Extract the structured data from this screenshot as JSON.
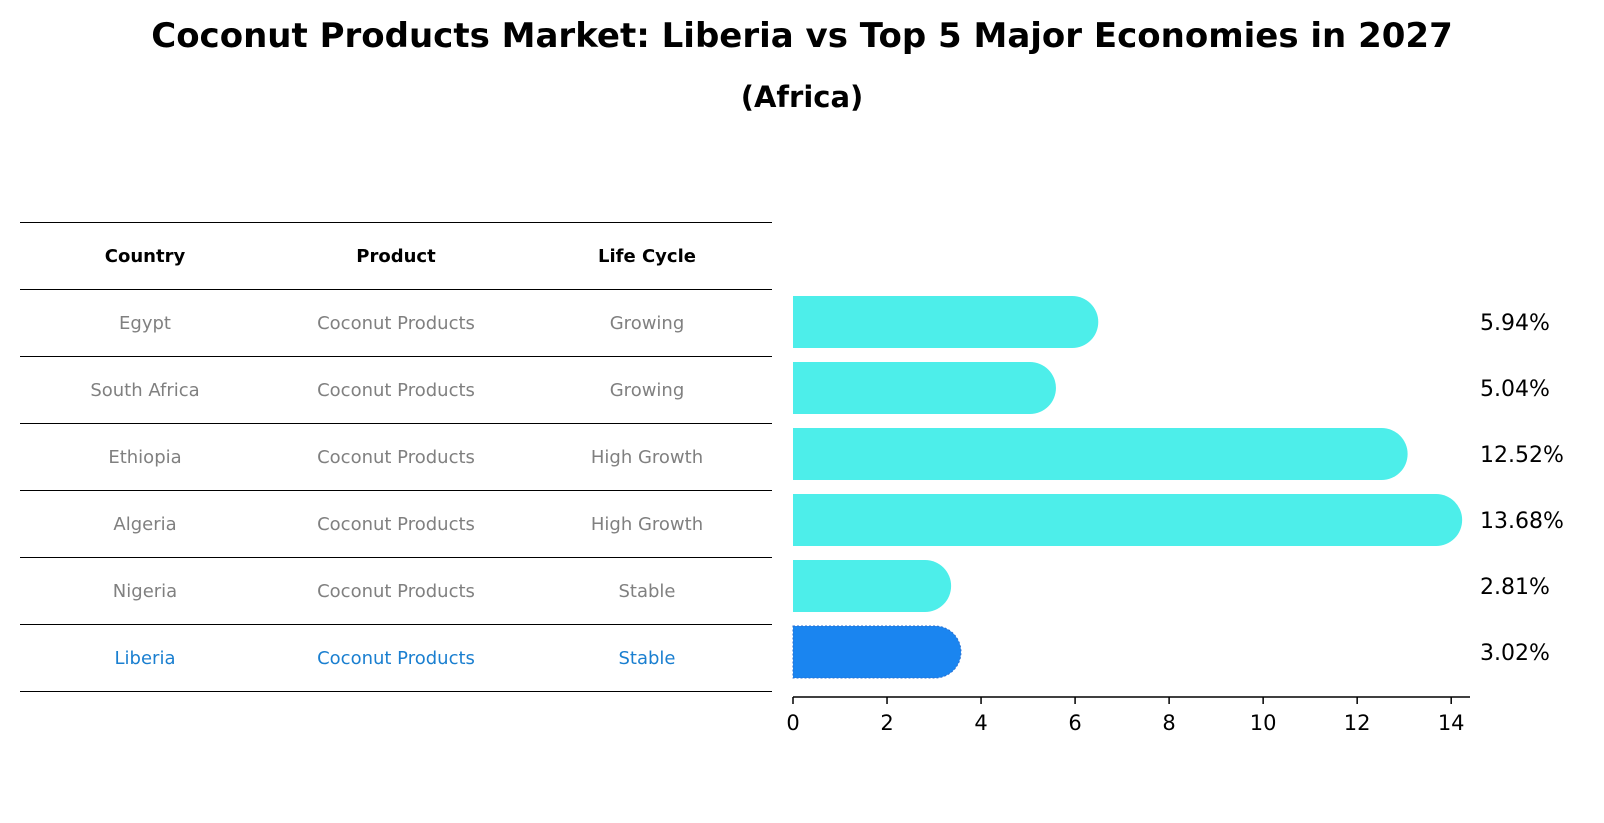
{
  "title": "Coconut Products Market: Liberia vs Top 5 Major Economies in 2027",
  "subtitle": "(Africa)",
  "table": {
    "headers": [
      "Country",
      "Product",
      "Life Cycle"
    ],
    "rows": [
      {
        "country": "Egypt",
        "product": "Coconut Products",
        "life_cycle": "Growing"
      },
      {
        "country": "South Africa",
        "product": "Coconut Products",
        "life_cycle": "Growing"
      },
      {
        "country": "Ethiopia",
        "product": "Coconut Products",
        "life_cycle": "High Growth"
      },
      {
        "country": "Algeria",
        "product": "Coconut Products",
        "life_cycle": "High Growth"
      },
      {
        "country": "Nigeria",
        "product": "Coconut Products",
        "life_cycle": "Stable"
      },
      {
        "country": "Liberia",
        "product": "Coconut Products",
        "life_cycle": "Stable"
      }
    ]
  },
  "chart_data": {
    "type": "bar",
    "orientation": "horizontal",
    "categories": [
      "Egypt",
      "South Africa",
      "Ethiopia",
      "Algeria",
      "Nigeria",
      "Liberia"
    ],
    "values": [
      5.94,
      5.04,
      12.52,
      13.68,
      2.81,
      3.02
    ],
    "value_labels": [
      "5.94%",
      "5.04%",
      "12.52%",
      "13.68%",
      "2.81%",
      "3.02%"
    ],
    "highlight": "Liberia",
    "xlim": [
      0,
      14.4
    ],
    "xticks": [
      0,
      2,
      4,
      6,
      8,
      10,
      12,
      14
    ],
    "colors": {
      "default": "#4deeea",
      "highlight": "#1a85f0"
    }
  }
}
